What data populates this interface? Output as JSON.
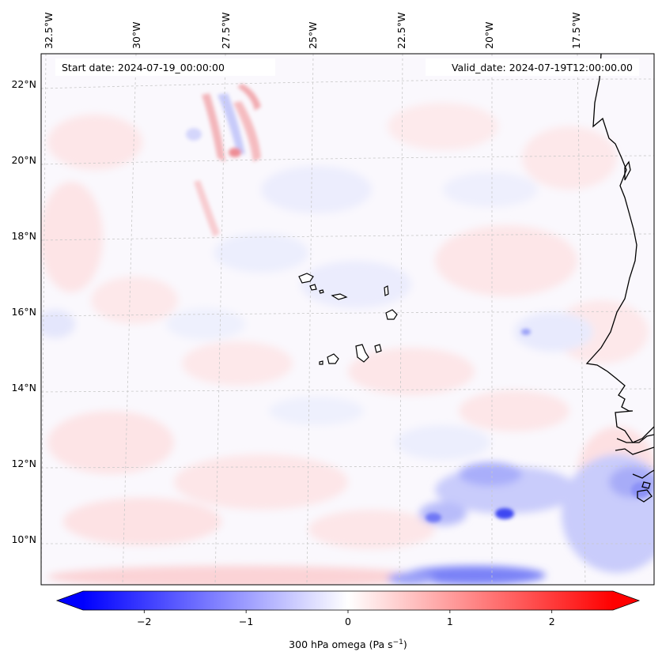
{
  "map": {
    "start_date": "Start date: 2024-07-19_00:00:00",
    "valid_date": "Valid_date: 2024-07-19T12:00:00.00",
    "lon_labels": [
      "32.5°W",
      "30°W",
      "27.5°W",
      "25°W",
      "22.5°W",
      "20°W",
      "17.5°W"
    ],
    "lat_labels": [
      "22°N",
      "20°N",
      "18°N",
      "16°N",
      "14°N",
      "12°N",
      "10°N"
    ],
    "variable": "300 hPa omega",
    "units": "Pa s",
    "units_exponent": "−1"
  },
  "colorbar": {
    "ticks": [
      "−2",
      "−1",
      "0",
      "1",
      "2"
    ],
    "tick_values": [
      -2,
      -1,
      0,
      1,
      2
    ],
    "range": [
      -2.6,
      2.6
    ],
    "colormap": "bwr",
    "low_color": "#0000ff",
    "mid_color": "#ffffff",
    "high_color": "#ff0000"
  },
  "colors": {
    "coastline": "#000000",
    "gridline": "#c8c8c8"
  }
}
